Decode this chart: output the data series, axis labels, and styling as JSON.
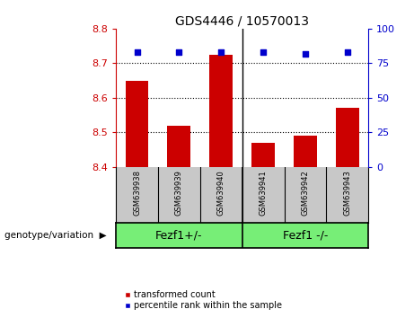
{
  "title": "GDS4446 / 10570013",
  "samples": [
    "GSM639938",
    "GSM639939",
    "GSM639940",
    "GSM639941",
    "GSM639942",
    "GSM639943"
  ],
  "bar_values": [
    8.65,
    8.52,
    8.725,
    8.47,
    8.49,
    8.57
  ],
  "percentile_values": [
    83,
    83,
    83,
    83,
    82,
    83
  ],
  "ylim_left": [
    8.4,
    8.8
  ],
  "ylim_right": [
    0,
    100
  ],
  "yticks_left": [
    8.4,
    8.5,
    8.6,
    8.7,
    8.8
  ],
  "yticks_right": [
    0,
    25,
    50,
    75,
    100
  ],
  "bar_color": "#cc0000",
  "dot_color": "#0000cc",
  "group1_label": "Fezf1+/-",
  "group2_label": "Fezf1 -/-",
  "group1_indices": [
    0,
    1,
    2
  ],
  "group2_indices": [
    3,
    4,
    5
  ],
  "genotype_label": "genotype/variation",
  "legend_bar_label": "transformed count",
  "legend_dot_label": "percentile rank within the sample",
  "bg_color_plot": "#ffffff",
  "bg_color_sample": "#c8c8c8",
  "bg_color_group": "#77ee77",
  "left_axis_color": "#cc0000",
  "right_axis_color": "#0000cc",
  "title_fontsize": 10,
  "tick_fontsize": 8,
  "sample_fontsize": 6,
  "group_fontsize": 9,
  "legend_fontsize": 7,
  "genotype_text_fontsize": 7.5
}
